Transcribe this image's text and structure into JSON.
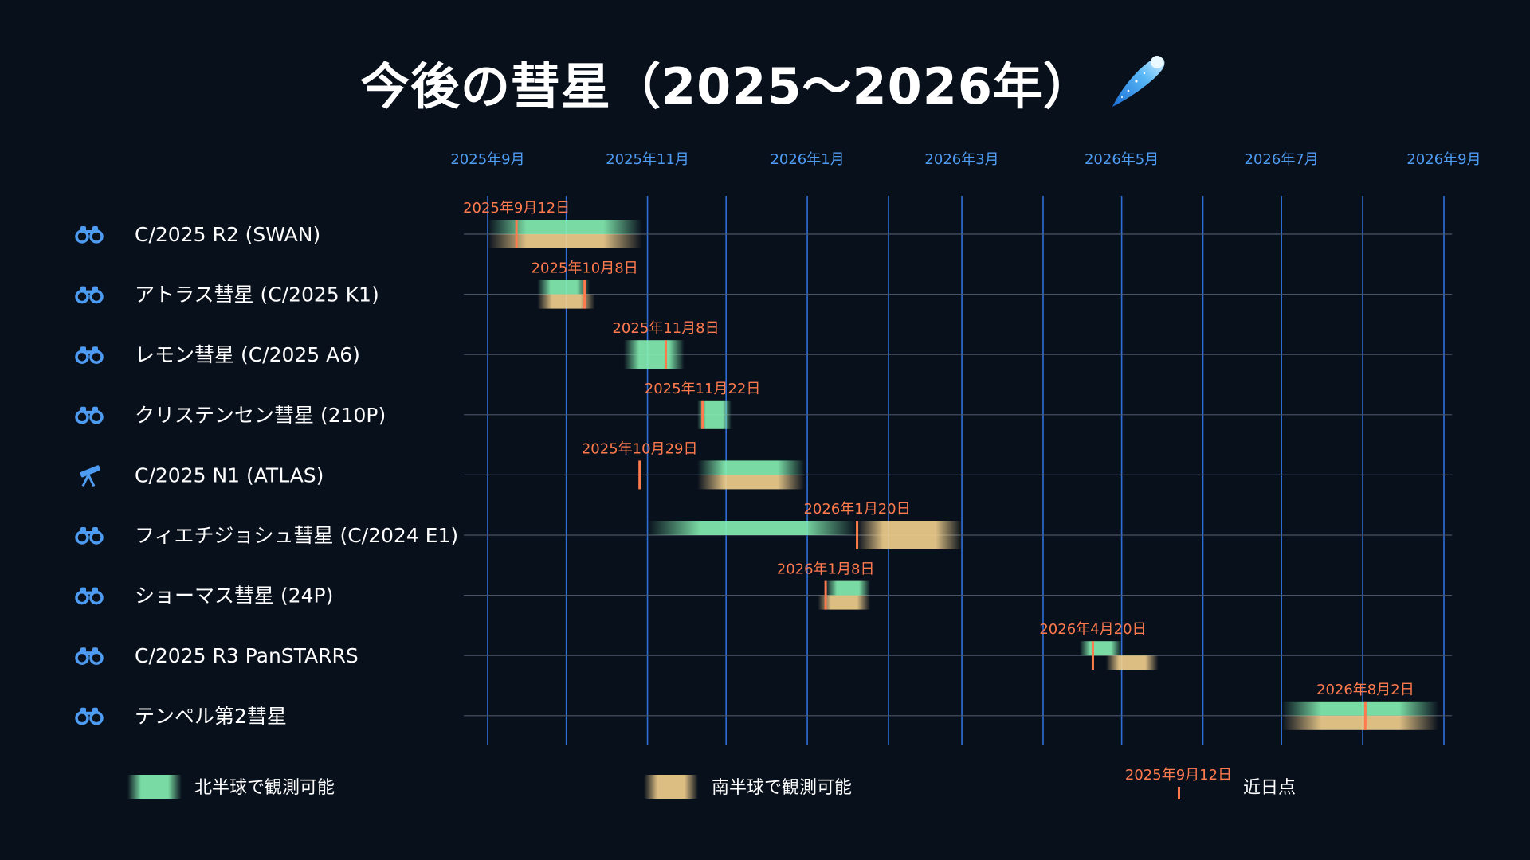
{
  "title": "今後の彗星（2025～2026年）",
  "title_icon": "comet-icon",
  "colors": {
    "background": "#08101c",
    "grid": "#2f6fd8",
    "accent_month": "#4e9bf2",
    "north": "#86f0b2",
    "south": "#f3d18e",
    "perihelion": "#ff7a4d"
  },
  "chart_data": {
    "type": "gantt",
    "x_axis": {
      "ticks": [
        "2025-09-01",
        "2025-10-01",
        "2025-11-01",
        "2025-12-01",
        "2026-01-01",
        "2026-02-01",
        "2026-03-01",
        "2026-04-01",
        "2026-05-01",
        "2026-06-01",
        "2026-07-01",
        "2026-08-01",
        "2026-09-01"
      ],
      "labels": [
        "2025年9月",
        "2025年11月",
        "2026年1月",
        "2026年3月",
        "2026年5月",
        "2026年7月",
        "2026年9月"
      ],
      "label_ticks": [
        "2025-09-01",
        "2025-11-01",
        "2026-01-01",
        "2026-03-01",
        "2026-05-01",
        "2026-07-01",
        "2026-09-01"
      ],
      "range": [
        "2025-09-01",
        "2026-09-01"
      ]
    },
    "rows": [
      {
        "name": "C/2025 R2 (SWAN)",
        "icon": "binoculars-icon",
        "perihelion": "2025-09-12",
        "perihelion_label": "2025年9月12日",
        "north": [
          "2025-09-01",
          "2025-10-30"
        ],
        "south": [
          "2025-09-01",
          "2025-10-30"
        ]
      },
      {
        "name": "アトラス彗星 (C/2025 K1)",
        "icon": "binoculars-icon",
        "perihelion": "2025-10-08",
        "perihelion_label": "2025年10月8日",
        "north": [
          "2025-09-20",
          "2025-10-10"
        ],
        "south": [
          "2025-09-20",
          "2025-10-12"
        ]
      },
      {
        "name": "レモン彗星 (C/2025 A6)",
        "icon": "binoculars-icon",
        "perihelion": "2025-11-08",
        "perihelion_label": "2025年11月8日",
        "north": [
          "2025-10-23",
          "2025-11-15"
        ],
        "south": null
      },
      {
        "name": "クリステンセン彗星 (210P)",
        "icon": "binoculars-icon",
        "perihelion": "2025-11-22",
        "perihelion_label": "2025年11月22日",
        "north": [
          "2025-11-20",
          "2025-12-03"
        ],
        "south": null
      },
      {
        "name": "C/2025 N1 (ATLAS)",
        "icon": "telescope-icon",
        "perihelion": "2025-10-29",
        "perihelion_label": "2025年10月29日",
        "north": [
          "2025-11-20",
          "2025-12-31"
        ],
        "south": [
          "2025-11-20",
          "2025-12-31"
        ]
      },
      {
        "name": "フィエチジョシュ彗星 (C/2024 E1)",
        "icon": "binoculars-icon",
        "perihelion": "2026-01-20",
        "perihelion_label": "2026年1月20日",
        "north": [
          "2025-11-01",
          "2026-01-20"
        ],
        "south": [
          "2026-01-20",
          "2026-03-01"
        ]
      },
      {
        "name": "ショーマス彗星 (24P)",
        "icon": "binoculars-icon",
        "perihelion": "2026-01-08",
        "perihelion_label": "2026年1月8日",
        "north": [
          "2026-01-08",
          "2026-01-25"
        ],
        "south": [
          "2026-01-05",
          "2026-01-25"
        ]
      },
      {
        "name": "C/2025 R3 PanSTARRS",
        "icon": "binoculars-icon",
        "perihelion": "2026-04-20",
        "perihelion_label": "2026年4月20日",
        "north": [
          "2026-04-15",
          "2026-05-01"
        ],
        "south": [
          "2026-04-25",
          "2026-05-15"
        ]
      },
      {
        "name": "テンペル第2彗星",
        "icon": "binoculars-icon",
        "perihelion": "2026-08-02",
        "perihelion_label": "2026年8月2日",
        "north": [
          "2026-07-01",
          "2026-08-30"
        ],
        "south": [
          "2026-07-01",
          "2026-08-30"
        ]
      }
    ]
  },
  "legend": {
    "north_label": "北半球で観測可能",
    "south_label": "南半球で観測可能",
    "perihelion_example_date": "2025年9月12日",
    "perihelion_label": "近日点"
  }
}
